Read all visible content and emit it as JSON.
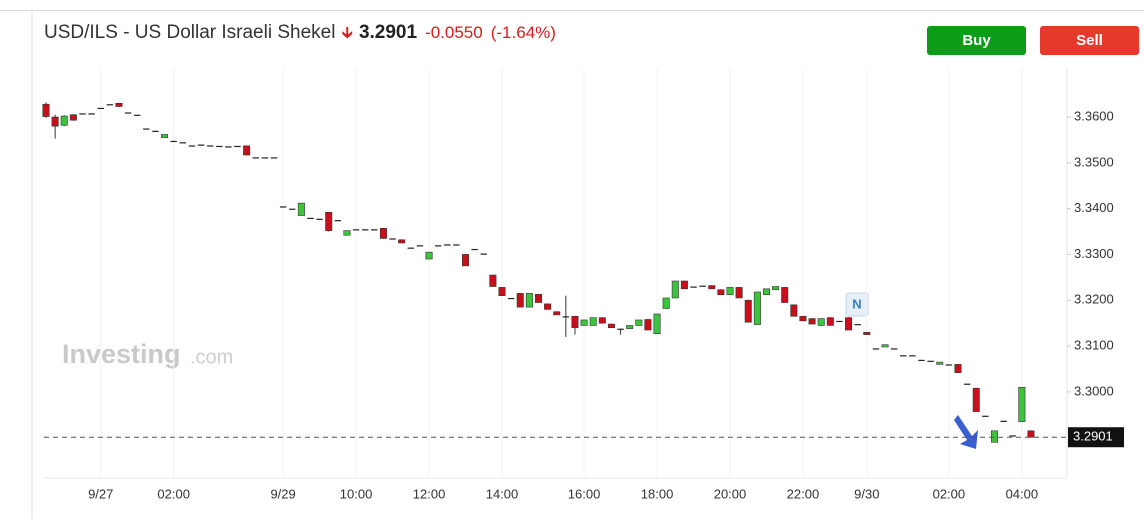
{
  "header": {
    "title": "USD/ILS - US Dollar Israeli Shekel",
    "price": "3.2901",
    "change": "-0.0550",
    "change_percent": "(-1.64%)"
  },
  "buttons": {
    "buy": "Buy",
    "sell": "Sell"
  },
  "watermark": {
    "brand": "Investing",
    "suffix": ".com"
  },
  "chart_data": {
    "type": "candlestick",
    "annotations": [
      "N"
    ],
    "up_color": "#3bc43b",
    "down_color": "#c8101a",
    "categories": [
      null,
      null,
      null,
      null,
      null,
      null,
      "9/27",
      null,
      null,
      null,
      null,
      null,
      null,
      null,
      "02:00",
      null,
      null,
      null,
      null,
      null,
      null,
      null,
      null,
      null,
      null,
      null,
      "9/29",
      null,
      null,
      null,
      null,
      null,
      null,
      null,
      "10:00",
      null,
      null,
      null,
      null,
      null,
      null,
      null,
      "12:00",
      null,
      null,
      null,
      null,
      null,
      null,
      null,
      "14:00",
      null,
      null,
      null,
      null,
      null,
      null,
      null,
      null,
      "16:00",
      null,
      null,
      null,
      null,
      null,
      null,
      null,
      "18:00",
      null,
      null,
      null,
      null,
      null,
      null,
      null,
      "20:00",
      null,
      null,
      null,
      null,
      null,
      null,
      null,
      "22:00",
      null,
      null,
      null,
      null,
      null,
      null,
      "9/30",
      null,
      null,
      null,
      null,
      null,
      null,
      null,
      null,
      "02:00",
      null,
      null,
      null,
      null,
      null,
      null,
      null,
      "04:00",
      null
    ],
    "open": [
      3.3628,
      3.36,
      3.3582,
      3.3605,
      3.3608,
      3.3608,
      3.362,
      3.3628,
      3.363,
      3.361,
      3.3605,
      3.3575,
      3.357,
      3.3555,
      3.3548,
      3.3545,
      3.3538,
      3.354,
      3.3538,
      3.3537,
      3.3536,
      3.3537,
      3.3537,
      3.3512,
      3.3512,
      3.3512,
      3.3405,
      3.34,
      3.3385,
      3.338,
      3.3378,
      3.3392,
      3.3375,
      3.3342,
      3.3355,
      3.3355,
      3.3355,
      3.3357,
      3.3335,
      3.3332,
      3.3315,
      3.332,
      3.329,
      3.332,
      3.3322,
      3.3322,
      3.33,
      3.3312,
      3.3302,
      3.3255,
      3.3228,
      3.3205,
      3.3215,
      3.3185,
      3.3213,
      3.3192,
      3.3175,
      3.3165,
      3.3165,
      3.3145,
      3.3145,
      3.3162,
      3.3148,
      3.3138,
      3.3138,
      3.3145,
      3.3158,
      3.3127,
      3.3182,
      3.3205,
      3.3242,
      3.323,
      3.3232,
      3.3232,
      3.3223,
      3.3212,
      3.3228,
      3.32,
      3.3147,
      3.3212,
      3.3223,
      3.3228,
      3.319,
      3.3165,
      3.316,
      3.3145,
      3.3162,
      3.3155,
      3.3162,
      3.3148,
      3.313,
      3.3095,
      3.3098,
      3.3095,
      3.308,
      3.308,
      3.307,
      3.3068,
      3.306,
      3.306,
      3.306,
      3.3018,
      3.3008,
      3.2948,
      3.289,
      3.2937,
      3.2905,
      3.2935,
      3.2915
    ],
    "high": [
      3.3632,
      3.3605,
      3.3604,
      3.3606,
      3.3608,
      3.3608,
      3.362,
      3.3628,
      3.3631,
      3.361,
      3.3605,
      3.3575,
      3.357,
      3.3562,
      3.3548,
      3.3545,
      3.3538,
      3.354,
      3.3538,
      3.3537,
      3.3536,
      3.3537,
      3.3538,
      3.3512,
      3.3512,
      3.3512,
      3.3405,
      3.34,
      3.3412,
      3.338,
      3.3378,
      3.3393,
      3.3375,
      3.3352,
      3.3355,
      3.3355,
      3.3355,
      3.3358,
      3.3335,
      3.3333,
      3.3315,
      3.332,
      3.3305,
      3.332,
      3.3322,
      3.3322,
      3.3301,
      3.3312,
      3.3302,
      3.3256,
      3.3229,
      3.3205,
      3.3216,
      3.3215,
      3.3214,
      3.3193,
      3.3176,
      3.321,
      3.3166,
      3.3157,
      3.3162,
      3.3163,
      3.3149,
      3.3138,
      3.3145,
      3.3157,
      3.3159,
      3.317,
      3.3205,
      3.3242,
      3.3243,
      3.323,
      3.3232,
      3.3233,
      3.3224,
      3.3228,
      3.3229,
      3.3201,
      3.3218,
      3.3225,
      3.323,
      3.3229,
      3.3191,
      3.3166,
      3.3161,
      3.316,
      3.3163,
      3.3155,
      3.3163,
      3.3148,
      3.3131,
      3.3095,
      3.3103,
      3.3095,
      3.308,
      3.308,
      3.307,
      3.3068,
      3.3065,
      3.306,
      3.3061,
      3.3018,
      3.3009,
      3.2948,
      3.2915,
      3.2937,
      3.2905,
      3.301,
      3.2916
    ],
    "low": [
      3.3598,
      3.3553,
      3.358,
      3.3592,
      3.3608,
      3.3608,
      3.362,
      3.3628,
      3.3622,
      3.361,
      3.3605,
      3.3575,
      3.357,
      3.3555,
      3.3548,
      3.3545,
      3.3538,
      3.354,
      3.3538,
      3.3537,
      3.3536,
      3.3537,
      3.3516,
      3.3512,
      3.3512,
      3.3512,
      3.3405,
      3.34,
      3.3385,
      3.338,
      3.3378,
      3.335,
      3.3375,
      3.3342,
      3.3355,
      3.3355,
      3.3355,
      3.3334,
      3.3335,
      3.3325,
      3.3315,
      3.332,
      3.329,
      3.332,
      3.3322,
      3.3322,
      3.3275,
      3.3312,
      3.3302,
      3.323,
      3.321,
      3.3205,
      3.3185,
      3.3185,
      3.3195,
      3.318,
      3.3168,
      3.312,
      3.3125,
      3.3145,
      3.3145,
      3.315,
      3.314,
      3.3125,
      3.3138,
      3.3145,
      3.3135,
      3.3127,
      3.3182,
      3.3205,
      3.3225,
      3.323,
      3.3232,
      3.3225,
      3.3212,
      3.3212,
      3.3205,
      3.3152,
      3.3147,
      3.3212,
      3.3223,
      3.3195,
      3.3165,
      3.3155,
      3.3148,
      3.3145,
      3.3145,
      3.3155,
      3.3135,
      3.3148,
      3.3125,
      3.3095,
      3.3098,
      3.3095,
      3.308,
      3.308,
      3.307,
      3.3068,
      3.306,
      3.306,
      3.3042,
      3.3018,
      3.2957,
      3.2948,
      3.289,
      3.2937,
      3.2905,
      3.2935,
      3.2901
    ],
    "close": [
      3.3601,
      3.358,
      3.3602,
      3.3593,
      3.3608,
      3.3608,
      3.362,
      3.3628,
      3.3623,
      3.361,
      3.3605,
      3.3575,
      3.357,
      3.3562,
      3.3548,
      3.3545,
      3.3538,
      3.354,
      3.3538,
      3.3537,
      3.3536,
      3.3537,
      3.3517,
      3.3512,
      3.3512,
      3.3512,
      3.3405,
      3.34,
      3.3412,
      3.338,
      3.3378,
      3.3352,
      3.3375,
      3.3352,
      3.3355,
      3.3355,
      3.3355,
      3.3335,
      3.3335,
      3.3325,
      3.3315,
      3.332,
      3.3305,
      3.332,
      3.3322,
      3.3322,
      3.3275,
      3.3312,
      3.3302,
      3.323,
      3.321,
      3.3205,
      3.3185,
      3.3215,
      3.3195,
      3.318,
      3.3168,
      3.3165,
      3.314,
      3.3157,
      3.3162,
      3.315,
      3.314,
      3.3138,
      3.3145,
      3.3157,
      3.3135,
      3.317,
      3.3205,
      3.3242,
      3.3225,
      3.323,
      3.3232,
      3.3225,
      3.3212,
      3.3228,
      3.3205,
      3.3152,
      3.3218,
      3.3225,
      3.323,
      3.3195,
      3.3165,
      3.3155,
      3.3148,
      3.316,
      3.3145,
      3.3155,
      3.3135,
      3.3148,
      3.3125,
      3.3095,
      3.3103,
      3.3095,
      3.308,
      3.308,
      3.307,
      3.3068,
      3.3065,
      3.306,
      3.3042,
      3.3018,
      3.2957,
      3.2948,
      3.2915,
      3.2937,
      3.2905,
      3.301,
      3.2901
    ],
    "ylim": [
      3.2812,
      3.3707
    ],
    "yticks": [
      {
        "value": 3.3,
        "label": "3.3000"
      },
      {
        "value": 3.31,
        "label": "3.3100"
      },
      {
        "value": 3.32,
        "label": "3.3200"
      },
      {
        "value": 3.33,
        "label": "3.3300"
      },
      {
        "value": 3.34,
        "label": "3.3400"
      },
      {
        "value": 3.35,
        "label": "3.3500"
      },
      {
        "value": 3.36,
        "label": "3.3600"
      }
    ],
    "grid": true
  }
}
